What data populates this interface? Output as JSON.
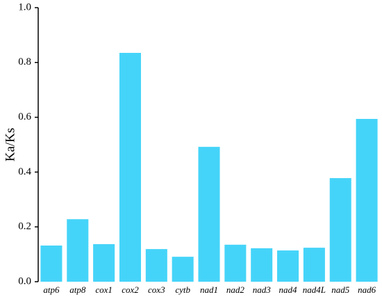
{
  "chart_data": {
    "type": "bar",
    "y_label": "Ka/Ks",
    "categories": [
      "atp6",
      "atp8",
      "cox1",
      "cox2",
      "cox3",
      "cytb",
      "nad1",
      "nad2",
      "nad3",
      "nad4",
      "nad4L",
      "nad5",
      "nad6"
    ],
    "values": [
      0.132,
      0.228,
      0.137,
      0.835,
      0.119,
      0.091,
      0.492,
      0.135,
      0.122,
      0.114,
      0.124,
      0.378,
      0.594
    ],
    "color": "#45d4f9",
    "ylim": [
      0,
      1
    ],
    "yticks": [
      {
        "value": 0,
        "label": "0.0"
      },
      0.2,
      0.4,
      0.6,
      0.8,
      {
        "value": 1,
        "label": "1.0"
      }
    ]
  }
}
